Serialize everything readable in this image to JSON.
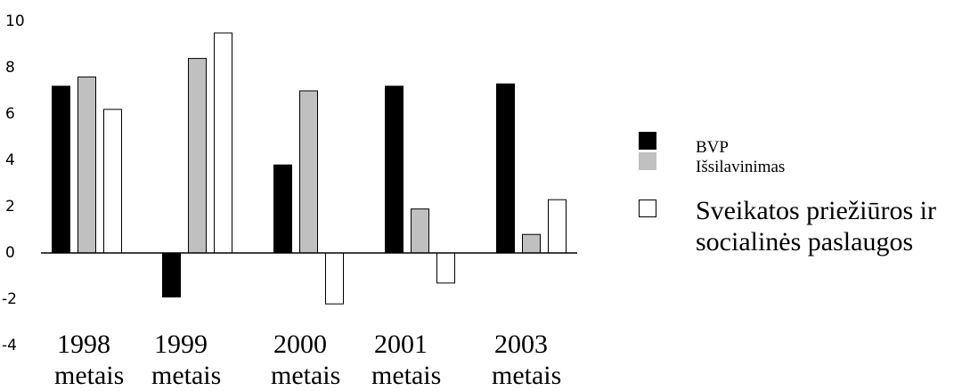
{
  "chart_data": {
    "type": "bar",
    "categories": [
      [
        "1998",
        "metais"
      ],
      [
        "1999",
        "metais"
      ],
      [
        "2000",
        "metais"
      ],
      [
        "2001",
        "metais"
      ],
      [
        "2003",
        "metais"
      ]
    ],
    "series": [
      {
        "name": "BVP",
        "color": "#000000",
        "values": [
          7.2,
          -1.9,
          3.8,
          7.2,
          7.3
        ]
      },
      {
        "name": "Išsilavinimas",
        "color": "#c0c0c0",
        "values": [
          7.6,
          8.4,
          7.0,
          1.9,
          0.8
        ]
      },
      {
        "name": [
          "Sveikatos priežiūros ir",
          "socialinės paslaugos"
        ],
        "color": "#ffffff",
        "values": [
          6.2,
          9.5,
          -2.2,
          -1.3,
          2.3
        ]
      }
    ],
    "ylim": [
      -4,
      10
    ],
    "yticks": [
      "10",
      "8",
      "6",
      "4",
      "2",
      "0",
      "-2",
      "-4"
    ],
    "title": "",
    "xlabel": "",
    "ylabel": "",
    "legend_position": "right",
    "grid": false
  }
}
